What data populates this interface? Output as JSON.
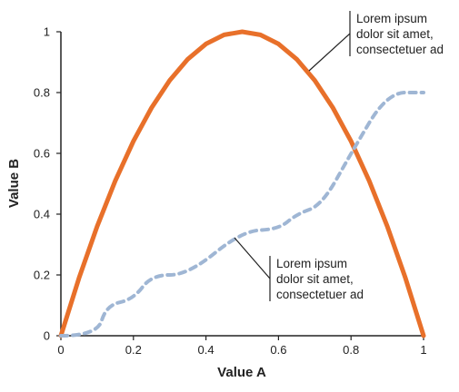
{
  "chart_data": {
    "type": "line",
    "xlabel": "Value A",
    "ylabel": "Value B",
    "xlim": [
      0,
      1
    ],
    "ylim": [
      0,
      1
    ],
    "x_ticks": [
      0,
      0.2,
      0.4,
      0.6,
      0.8,
      1
    ],
    "x_tick_labels": [
      "0",
      "0.2",
      "0.4",
      "0.6",
      "0.8",
      "1"
    ],
    "y_ticks": [
      0,
      0.2,
      0.4,
      0.6,
      0.8,
      1
    ],
    "y_tick_labels": [
      "0",
      "0.2",
      "0.4",
      "0.6",
      "0.8",
      "1"
    ],
    "grid": false,
    "series": [
      {
        "style": "solid",
        "color": "#e8702a",
        "x": [
          0,
          0.05,
          0.1,
          0.15,
          0.2,
          0.25,
          0.3,
          0.35,
          0.4,
          0.45,
          0.5,
          0.55,
          0.6,
          0.65,
          0.7,
          0.75,
          0.8,
          0.85,
          0.9,
          0.95,
          1
        ],
        "y": [
          0,
          0.19,
          0.36,
          0.51,
          0.64,
          0.75,
          0.84,
          0.91,
          0.96,
          0.99,
          1,
          0.99,
          0.96,
          0.91,
          0.84,
          0.75,
          0.64,
          0.51,
          0.36,
          0.19,
          0
        ]
      },
      {
        "style": "dashed",
        "color": "#9fb6d4",
        "x": [
          0,
          0.1,
          0.125,
          0.2,
          0.25,
          0.35,
          0.5,
          0.6,
          0.65,
          0.72,
          0.8,
          0.9,
          1
        ],
        "y": [
          0,
          0,
          0.1,
          0.12,
          0.2,
          0.2,
          0.345,
          0.35,
          0.4,
          0.43,
          0.6,
          0.8,
          0.8
        ]
      }
    ],
    "annotations": [
      {
        "text": [
          "Lorem ipsum",
          "dolor sit amet,",
          "consectetuer ad"
        ],
        "target": [
          0.68,
          0.88
        ]
      },
      {
        "text": [
          "Lorem ipsum",
          "dolor sit amet,",
          "consectetuer ad"
        ],
        "target": [
          0.49,
          0.33
        ]
      }
    ]
  }
}
